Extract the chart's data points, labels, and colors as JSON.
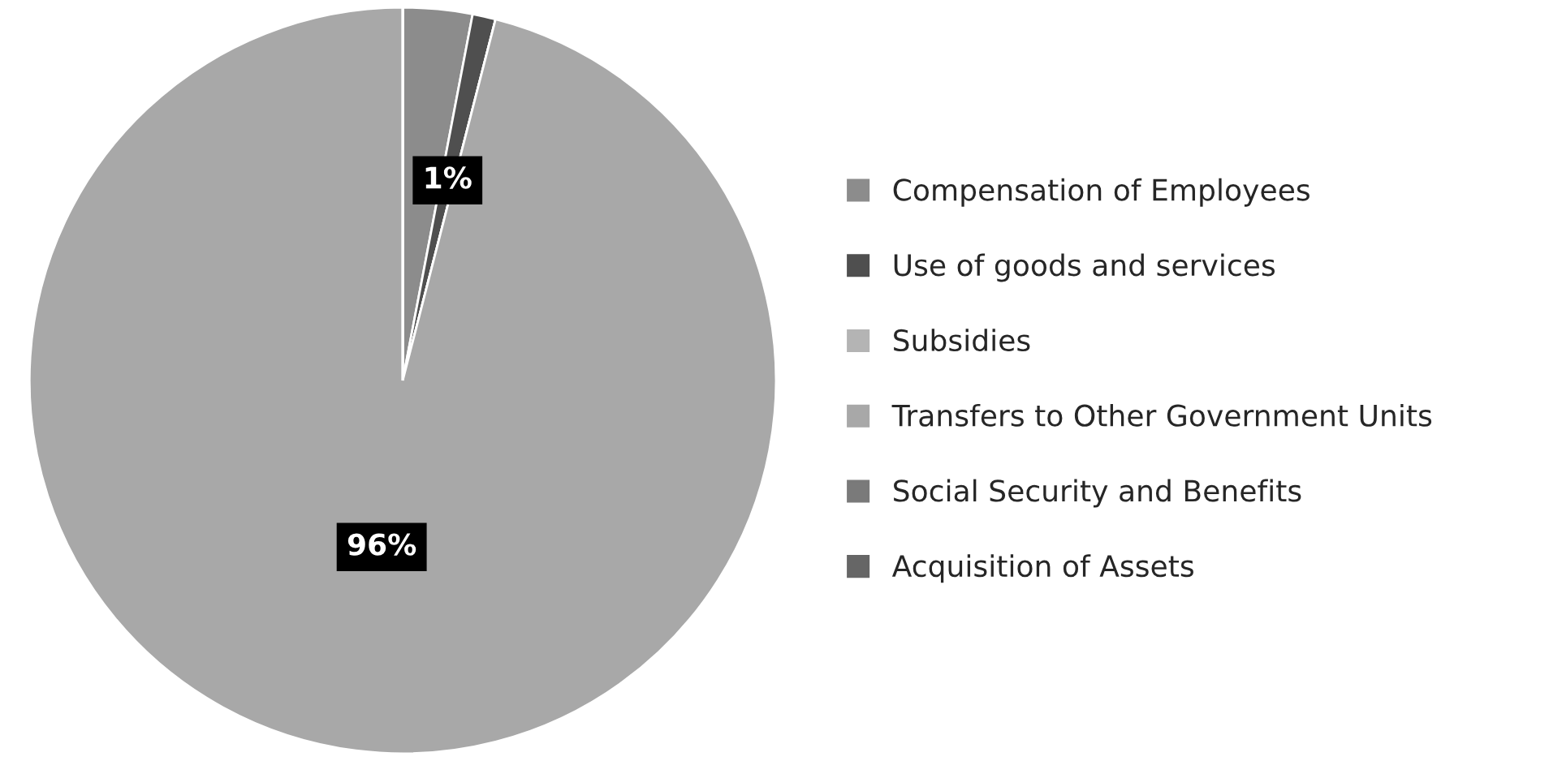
{
  "chart_data": {
    "type": "pie",
    "categories": [
      "Compensation of Employees",
      "Use of goods and services",
      "Subsidies",
      "Transfers to Other Government Units",
      "Social Security and Benefits",
      "Acquisition of Assets"
    ],
    "values": [
      3,
      1,
      0,
      96,
      0,
      0
    ],
    "value_labels": [
      null,
      "1%",
      null,
      "96%",
      null,
      null
    ],
    "colors": [
      "#8c8c8c",
      "#4f4f4f",
      "#b4b4b4",
      "#a8a8a8",
      "#7a7a7a",
      "#666666"
    ],
    "legend": "right"
  }
}
